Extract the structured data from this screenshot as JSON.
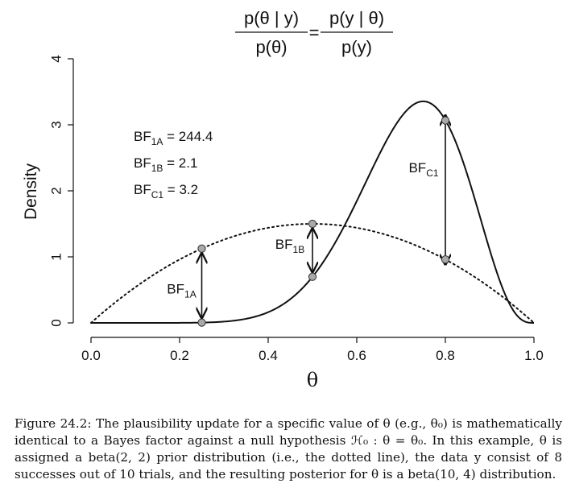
{
  "chart_data": {
    "type": "line",
    "xlabel": "θ",
    "ylabel": "Density",
    "xlim": [
      0,
      1
    ],
    "ylim": [
      0,
      4
    ],
    "x_ticks": [
      "0.0",
      "0.2",
      "0.4",
      "0.6",
      "0.8",
      "1.0"
    ],
    "y_ticks": [
      "0",
      "1",
      "2",
      "3",
      "4"
    ],
    "series": [
      {
        "style": "dotted",
        "distribution": "beta(2,2)"
      },
      {
        "style": "solid",
        "distribution": "beta(10,4)"
      }
    ],
    "formula": {
      "lhs_num": "p(θ | y)",
      "lhs_den": "p(θ)",
      "eq": "=",
      "rhs_num": "p(y | θ)",
      "rhs_den": "p(y)"
    },
    "bayes_factors": [
      {
        "name": "BF",
        "sub": "1A",
        "value": "244.4",
        "theta": 0.25,
        "prior": 1.125,
        "posterior": 0.0046
      },
      {
        "name": "BF",
        "sub": "1B",
        "value": "2.1",
        "theta": 0.5,
        "prior": 1.5,
        "posterior": 0.698
      },
      {
        "name": "BF",
        "sub": "C1",
        "value": "3.2",
        "theta": 0.8,
        "prior": 0.96,
        "posterior": 3.066
      }
    ],
    "legend_eq": " = "
  },
  "caption": {
    "text": "Figure 24.2: The plausibility update for a specific value of θ (e.g., θ₀) is mathematically identical to a Bayes factor against a null hypothesis ℋ₀ : θ = θ₀. In this example, θ is assigned a beta(2, 2) prior distribution (i.e., the dotted line), the data y consist of 8 successes out of 10 trials, and the resulting posterior for θ is a beta(10, 4) distribution."
  }
}
